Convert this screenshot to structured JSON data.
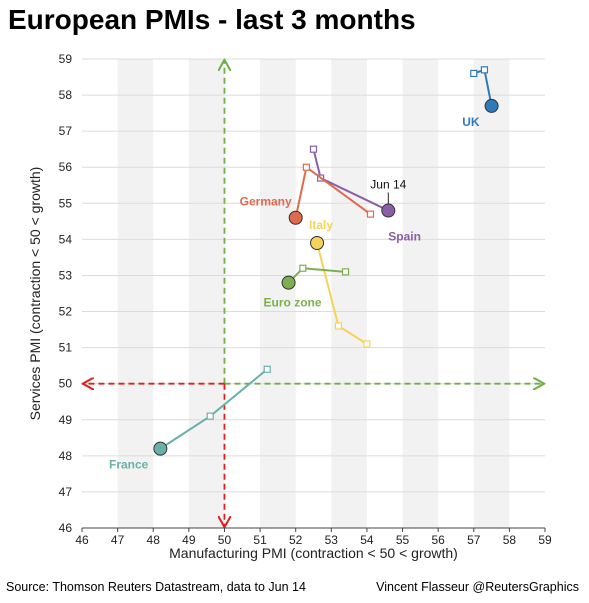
{
  "title": "European PMIs - last 3 months",
  "footer": {
    "source": "Source: Thomson Reuters Datastream, data to Jun 14",
    "credit": "Vincent Flasseur @ReutersGraphics"
  },
  "chart_data": {
    "type": "scatter",
    "title": "European PMIs - last 3 months",
    "xlabel": "Manufacturing PMI (contraction < 50 < growth)",
    "ylabel": "Services PMI (contraction < 50 < growth)",
    "xlim": [
      46,
      59
    ],
    "ylim": [
      46,
      59
    ],
    "xticks": [
      "46",
      "47",
      "48",
      "49",
      "50",
      "51",
      "52",
      "53",
      "54",
      "55",
      "56",
      "57",
      "58",
      "59"
    ],
    "yticks": [
      "46",
      "47",
      "48",
      "49",
      "50",
      "51",
      "52",
      "53",
      "54",
      "55",
      "56",
      "57",
      "58",
      "59"
    ],
    "threshold": 50,
    "grid": true,
    "annotations": [
      {
        "text": "Jun 14",
        "series": "Spain"
      }
    ],
    "series": [
      {
        "name": "UK",
        "color": "#2f7ab8",
        "label_pos": "below-left",
        "points": [
          [
            57.0,
            58.6
          ],
          [
            57.3,
            58.7
          ],
          [
            57.5,
            57.7
          ]
        ]
      },
      {
        "name": "Spain",
        "color": "#8b5ea8",
        "label_pos": "below-right",
        "points": [
          [
            52.5,
            56.5
          ],
          [
            52.7,
            55.7
          ],
          [
            54.6,
            54.8
          ]
        ]
      },
      {
        "name": "Germany",
        "color": "#e06a4e",
        "label_pos": "left",
        "points": [
          [
            54.1,
            54.7
          ],
          [
            52.3,
            56.0
          ],
          [
            52.0,
            54.6
          ]
        ]
      },
      {
        "name": "Italy",
        "color": "#f5d35a",
        "label_pos": "right",
        "points": [
          [
            54.0,
            51.1
          ],
          [
            53.2,
            51.6
          ],
          [
            52.6,
            53.9
          ]
        ]
      },
      {
        "name": "Euro zone",
        "color": "#7cb04f",
        "label_pos": "below",
        "points": [
          [
            53.4,
            53.1
          ],
          [
            52.2,
            53.2
          ],
          [
            51.8,
            52.8
          ]
        ]
      },
      {
        "name": "France",
        "color": "#6ab0aa",
        "label_pos": "below-left",
        "points": [
          [
            51.2,
            50.4
          ],
          [
            49.6,
            49.1
          ],
          [
            48.2,
            48.2
          ]
        ]
      }
    ]
  }
}
